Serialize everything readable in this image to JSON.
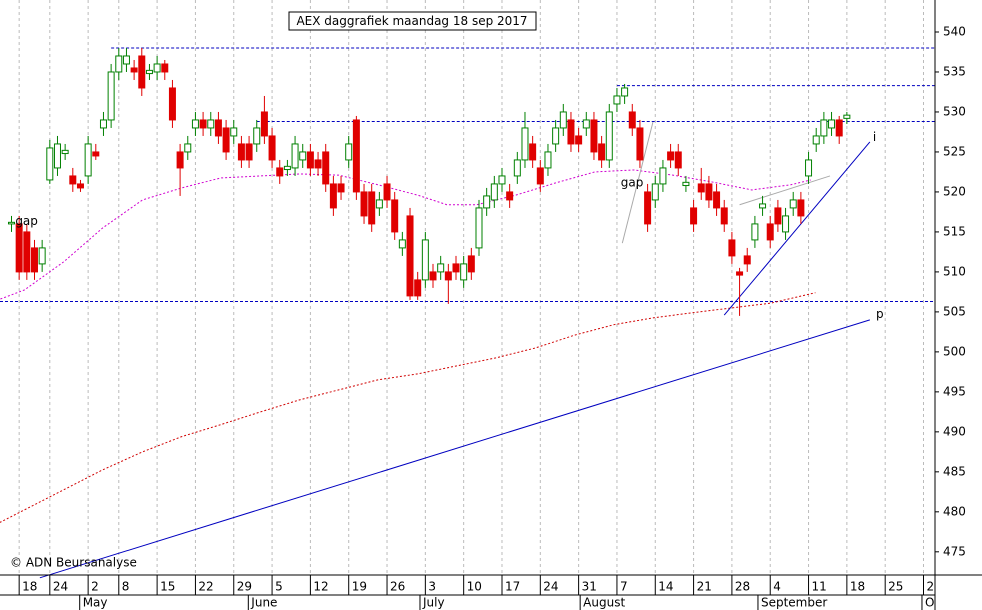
{
  "chart_data": {
    "type": "candlestick",
    "title": "AEX daggrafiek maandag 18 sep 2017",
    "credit": "© ADN Beursanalyse",
    "xlim": [
      -0.5,
      121.5
    ],
    "ylim": [
      472.1,
      544
    ],
    "yticks": [
      475,
      480,
      485,
      490,
      495,
      500,
      505,
      510,
      515,
      520,
      525,
      530,
      535,
      540
    ],
    "xticks": [
      {
        "value": 2,
        "label": "18"
      },
      {
        "value": 6,
        "label": "24"
      },
      {
        "value": 11,
        "label": "2"
      },
      {
        "value": 15,
        "label": "8"
      },
      {
        "value": 20,
        "label": "15"
      },
      {
        "value": 25,
        "label": "22"
      },
      {
        "value": 30,
        "label": "29"
      },
      {
        "value": 35,
        "label": "5"
      },
      {
        "value": 40,
        "label": "12"
      },
      {
        "value": 45,
        "label": "19"
      },
      {
        "value": 50,
        "label": "26"
      },
      {
        "value": 55,
        "label": "3"
      },
      {
        "value": 60,
        "label": "10"
      },
      {
        "value": 65,
        "label": "17"
      },
      {
        "value": 70,
        "label": "24"
      },
      {
        "value": 75,
        "label": "31"
      },
      {
        "value": 80,
        "label": "7"
      },
      {
        "value": 85,
        "label": "14"
      },
      {
        "value": 90,
        "label": "21"
      },
      {
        "value": 95,
        "label": "28"
      },
      {
        "value": 100,
        "label": "4"
      },
      {
        "value": 105,
        "label": "11"
      },
      {
        "value": 110,
        "label": "18"
      },
      {
        "value": 115,
        "label": "25"
      },
      {
        "value": 120,
        "label": "2"
      }
    ],
    "months": [
      {
        "value": 9.9,
        "label": "May"
      },
      {
        "value": 31.9,
        "label": "June"
      },
      {
        "value": 54.3,
        "label": "July"
      },
      {
        "value": 75.2,
        "label": "August"
      },
      {
        "value": 98.4,
        "label": "September"
      },
      {
        "value": 119.8,
        "label": "O"
      }
    ],
    "grid": true,
    "up_color": "#008000",
    "down_color": "#e00000",
    "x": [
      1,
      2,
      3,
      4,
      5,
      6,
      7,
      8,
      9,
      10,
      11,
      12,
      13,
      14,
      15,
      16,
      17,
      18,
      19,
      20,
      21,
      22,
      23,
      24,
      25,
      26,
      27,
      28,
      29,
      30,
      31,
      32,
      33,
      34,
      35,
      36,
      37,
      38,
      39,
      40,
      41,
      42,
      43,
      44,
      45,
      46,
      47,
      48,
      49,
      50,
      51,
      52,
      53,
      54,
      55,
      56,
      57,
      58,
      59,
      60,
      61,
      62,
      63,
      64,
      65,
      66,
      67,
      68,
      69,
      70,
      71,
      72,
      73,
      74,
      75,
      76,
      77,
      78,
      79,
      80,
      81,
      82,
      83,
      84,
      85,
      86,
      87,
      88,
      89,
      90,
      91,
      92,
      93,
      94,
      95,
      96,
      97,
      98,
      99,
      100,
      101,
      102,
      103,
      104,
      105,
      106,
      107,
      108,
      109,
      110
    ],
    "open": [
      516,
      516,
      515,
      513,
      511,
      521.5,
      523,
      524.8,
      522,
      521,
      522,
      525,
      528,
      529,
      535,
      536,
      535.5,
      537,
      534.8,
      535,
      536,
      533,
      525,
      525,
      528,
      529,
      528,
      529,
      528,
      527,
      526,
      526,
      526,
      530,
      527,
      523,
      522.8,
      523,
      524,
      525,
      524,
      525,
      521,
      521,
      524,
      529,
      520,
      520,
      518,
      521,
      519,
      513,
      517,
      509,
      509,
      510,
      510,
      510,
      511,
      509,
      512,
      513,
      518,
      519,
      521,
      520,
      522,
      524,
      526,
      523,
      523,
      526,
      528,
      529,
      527,
      528,
      529,
      526,
      524,
      531,
      532,
      530,
      528,
      520,
      519,
      521,
      525,
      525,
      520.8,
      518,
      521,
      521,
      520,
      518,
      514,
      510,
      512,
      514,
      518,
      516,
      518,
      515,
      518,
      519,
      522,
      526,
      527,
      528,
      529,
      529.2
    ],
    "high": [
      517,
      517,
      516,
      514,
      514,
      526.5,
      527,
      526,
      523,
      521.5,
      527,
      526,
      530,
      536,
      538,
      538,
      536.5,
      538,
      536,
      537,
      536.5,
      534,
      526,
      527,
      530,
      530,
      530,
      530,
      529,
      529,
      527,
      527,
      529,
      532,
      528,
      524,
      524,
      527,
      526,
      526,
      525,
      526,
      522,
      522,
      527,
      529.5,
      521,
      521,
      520,
      522,
      520,
      515,
      518,
      510,
      515,
      511,
      512,
      511,
      512,
      512,
      513,
      519,
      520.5,
      522,
      523,
      521,
      525,
      530,
      527,
      524,
      526,
      529,
      531,
      530,
      528,
      530,
      530,
      527,
      531,
      533,
      533.5,
      531,
      529,
      521,
      522,
      524,
      526,
      526,
      522,
      519,
      523,
      522,
      521,
      519,
      515,
      510.5,
      513,
      517,
      519.5,
      517,
      519,
      518,
      520,
      520,
      525,
      528,
      530,
      530,
      529.5,
      530
    ],
    "low": [
      515,
      509,
      509,
      509,
      510,
      521,
      522,
      524,
      520,
      520,
      521,
      524,
      527,
      528,
      534,
      535,
      534,
      532,
      534,
      534,
      534,
      528,
      519.5,
      524,
      527,
      527,
      527,
      526,
      524,
      526,
      523,
      523,
      525,
      526,
      523,
      521,
      522,
      522,
      523,
      522,
      522,
      520,
      517,
      519,
      523,
      519,
      516,
      515,
      517,
      518,
      514,
      512,
      506.5,
      506.5,
      508,
      508,
      509,
      506,
      509,
      508,
      509,
      512,
      517,
      518,
      520,
      518,
      521,
      523,
      523,
      520,
      522,
      525,
      527,
      525,
      525,
      527,
      524,
      523,
      523,
      530,
      531,
      527,
      523,
      515,
      518,
      520,
      523,
      522,
      520,
      515,
      519,
      518,
      517,
      515,
      511,
      504.5,
      510,
      513,
      517,
      513,
      515,
      514,
      517,
      516,
      521,
      525,
      526,
      527,
      526,
      528.5
    ],
    "close": [
      516.2,
      510,
      510,
      510,
      513,
      525.5,
      526,
      525.2,
      521,
      520.5,
      526,
      524.5,
      529,
      535,
      537,
      537,
      535,
      533,
      535.2,
      536,
      535,
      529,
      523,
      526,
      529,
      528,
      529,
      527,
      525,
      528,
      524,
      524,
      528,
      527,
      524,
      522,
      523.2,
      526,
      525,
      523,
      523,
      521,
      518,
      520,
      526,
      520,
      517,
      516,
      519,
      519,
      515,
      514,
      507,
      507,
      514,
      509,
      511,
      509,
      510,
      511,
      510,
      518,
      519.5,
      521,
      522,
      519,
      524,
      528,
      524,
      521,
      525,
      528,
      530,
      526,
      526,
      529,
      525,
      524,
      530,
      532,
      533,
      528,
      524,
      516,
      521,
      523,
      524,
      523,
      521.2,
      516,
      520,
      519,
      518,
      516,
      512,
      509.6,
      511,
      516,
      518.5,
      514,
      516,
      517,
      519,
      517,
      524,
      527,
      529,
      529,
      527,
      529.6
    ],
    "averages": [
      {
        "color": "#d000d0",
        "x": [
          -2.4,
          2.7,
          7.8,
          12.9,
          18.1,
          23.2,
          28.3,
          33.5,
          38.6,
          43.7,
          48.8,
          54,
          57.8,
          61.7,
          66.8,
          71.9,
          77.1,
          82.2,
          87.3,
          92.4,
          97.6,
          102.7,
          105.3
        ],
        "values": [
          505.9,
          507.75,
          511.25,
          515.5,
          519,
          520.5,
          521.75,
          522,
          522.25,
          522.1,
          520.9,
          519.6,
          518.4,
          518.4,
          519.6,
          521.1,
          522.5,
          522.75,
          522.1,
          521.25,
          520.25,
          520.9,
          521.5
        ]
      },
      {
        "color": "#d00000",
        "x": [
          -2.4,
          2.7,
          7.8,
          12.9,
          18.1,
          23.2,
          28.3,
          33.5,
          38.6,
          43.7,
          48.8,
          54,
          59.1,
          64.2,
          69.4,
          74.5,
          79.6,
          84.7,
          89.9,
          95,
          100.1,
          105.9
        ],
        "values": [
          477.75,
          480.25,
          482.75,
          485.25,
          487.5,
          489.4,
          490.9,
          492.5,
          494,
          495.25,
          496.5,
          497.25,
          498.25,
          499.25,
          500.5,
          502.1,
          503.4,
          504.25,
          504.9,
          505.5,
          506.1,
          507.4
        ]
      }
    ],
    "hlines": [
      {
        "value": 538,
        "from": 14
      },
      {
        "value": 533.3,
        "from": 80
      },
      {
        "value": 528.8,
        "from": 33
      },
      {
        "value": 506.3,
        "from": -0.5
      }
    ],
    "hline_color": "#0000c0",
    "trendlines": [
      {
        "color": "#0000c0",
        "x": [
          94,
          113
        ],
        "y": [
          504.6,
          526.25
        ]
      },
      {
        "color": "#0000c0",
        "x": [
          4.7,
          113
        ],
        "y": [
          471.75,
          504
        ]
      },
      {
        "color": "#aaaaaa",
        "x": [
          80.7,
          84.7
        ],
        "y": [
          513.6,
          528.75
        ]
      },
      {
        "color": "#aaaaaa",
        "x": [
          96,
          107.8
        ],
        "y": [
          518.4,
          522
        ]
      }
    ],
    "annotations": [
      {
        "text": "gap",
        "x": 1.5,
        "y": 516.3,
        "color": "#aaaaaa"
      },
      {
        "text": "gap",
        "x": 80.5,
        "y": 521.1,
        "color": "#aaaaaa"
      },
      {
        "text": "i",
        "x": 113.4,
        "y": 526.8,
        "color": "#0000c0"
      },
      {
        "text": "p",
        "x": 113.8,
        "y": 504.7,
        "color": "#0000c0"
      }
    ]
  }
}
